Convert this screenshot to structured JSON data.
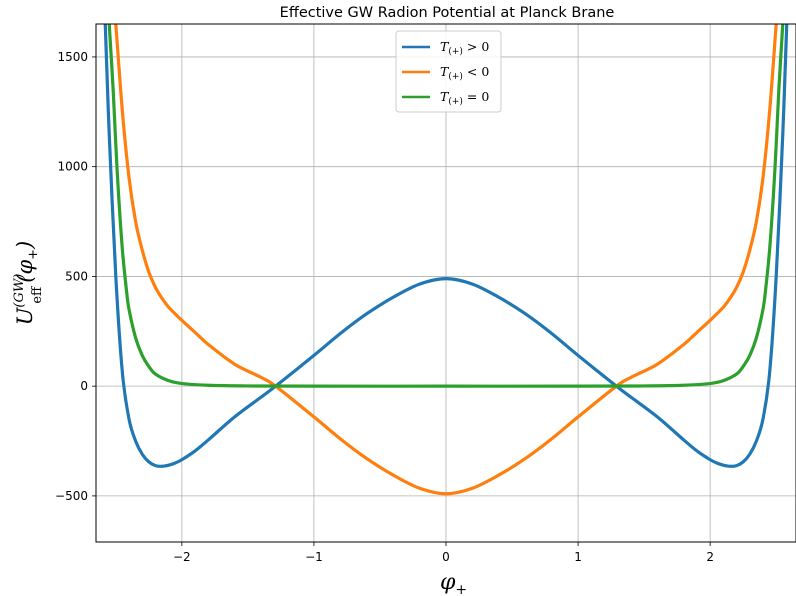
{
  "chart_data": {
    "type": "line",
    "title": "Effective GW Radion Potential at Planck Brane",
    "xlabel": "φ",
    "xlabel_sub": "+",
    "ylabel_main": "U",
    "ylabel_sup": "(GW)",
    "ylabel_sub": "eff",
    "ylabel_arg": "(φ",
    "ylabel_arg_sub": "+",
    "ylabel_close": ")",
    "xlim": [
      -2.65,
      2.65
    ],
    "ylim": [
      -710,
      1650
    ],
    "x_ticks": [
      -2,
      -1,
      0,
      1,
      2
    ],
    "x_tick_labels": [
      "−2",
      "−1",
      "0",
      "1",
      "2"
    ],
    "y_ticks": [
      -500,
      0,
      500,
      1000,
      1500
    ],
    "y_tick_labels": [
      "−500",
      "0",
      "500",
      "1000",
      "1500"
    ],
    "grid": true,
    "legend_position": "upper-center",
    "series": [
      {
        "name": "T(+) > 0",
        "legend": {
          "base": "T",
          "sub": "(+)",
          "rel": " > 0"
        },
        "color": "#1f77b4",
        "x": [
          -2.58,
          -2.55,
          -2.5,
          -2.45,
          -2.4,
          -2.35,
          -2.3,
          -2.25,
          -2.2,
          -2.15,
          -2.1,
          -2.05,
          -2.0,
          -1.9,
          -1.8,
          -1.6,
          -1.4,
          -1.29,
          -1.0,
          -0.8,
          -0.6,
          -0.4,
          -0.2,
          0.0,
          0.2,
          0.4,
          0.6,
          0.8,
          1.0,
          1.29,
          1.4,
          1.6,
          1.8,
          1.9,
          2.0,
          2.05,
          2.1,
          2.15,
          2.2,
          2.25,
          2.3,
          2.35,
          2.4,
          2.45,
          2.5,
          2.55,
          2.58
        ],
        "y": [
          1650,
          1150,
          500,
          60,
          -150,
          -250,
          -310,
          -345,
          -362,
          -365,
          -360,
          -350,
          -335,
          -295,
          -245,
          -140,
          -50,
          0,
          140,
          240,
          330,
          405,
          465,
          490,
          465,
          405,
          330,
          240,
          140,
          0,
          -50,
          -140,
          -245,
          -295,
          -335,
          -350,
          -360,
          -365,
          -362,
          -345,
          -310,
          -250,
          -150,
          60,
          500,
          1150,
          1650
        ]
      },
      {
        "name": "T(+) < 0",
        "legend": {
          "base": "T",
          "sub": "(+)",
          "rel": " < 0"
        },
        "color": "#ff7f0e",
        "x": [
          -2.5,
          -2.45,
          -2.4,
          -2.35,
          -2.3,
          -2.25,
          -2.2,
          -2.15,
          -2.1,
          -2.0,
          -1.9,
          -1.8,
          -1.6,
          -1.4,
          -1.29,
          -1.0,
          -0.8,
          -0.6,
          -0.4,
          -0.2,
          0.0,
          0.2,
          0.4,
          0.6,
          0.8,
          1.0,
          1.29,
          1.4,
          1.6,
          1.8,
          1.9,
          2.0,
          2.1,
          2.15,
          2.2,
          2.25,
          2.3,
          2.35,
          2.4,
          2.45,
          2.5
        ],
        "y": [
          1650,
          1250,
          950,
          750,
          620,
          520,
          450,
          400,
          360,
          300,
          245,
          190,
          100,
          40,
          0,
          -140,
          -240,
          -330,
          -405,
          -465,
          -490,
          -465,
          -405,
          -330,
          -240,
          -140,
          0,
          40,
          100,
          190,
          245,
          300,
          360,
          400,
          450,
          520,
          620,
          750,
          950,
          1250,
          1650
        ]
      },
      {
        "name": "T(+) = 0",
        "legend": {
          "base": "T",
          "sub": "(+)",
          "rel": " = 0"
        },
        "color": "#2ca02c",
        "x": [
          -2.55,
          -2.52,
          -2.5,
          -2.48,
          -2.45,
          -2.42,
          -2.4,
          -2.35,
          -2.3,
          -2.25,
          -2.2,
          -2.1,
          -2.0,
          -1.8,
          -1.5,
          -1.0,
          0.0,
          1.0,
          1.5,
          1.8,
          2.0,
          2.1,
          2.2,
          2.25,
          2.3,
          2.35,
          2.4,
          2.42,
          2.45,
          2.48,
          2.5,
          2.52,
          2.55
        ],
        "y": [
          1650,
          1350,
          1100,
          880,
          620,
          440,
          350,
          220,
          140,
          90,
          55,
          25,
          12,
          4,
          1,
          0,
          0,
          0,
          1,
          4,
          12,
          25,
          55,
          90,
          140,
          220,
          350,
          440,
          620,
          880,
          1100,
          1350,
          1650
        ]
      }
    ]
  }
}
